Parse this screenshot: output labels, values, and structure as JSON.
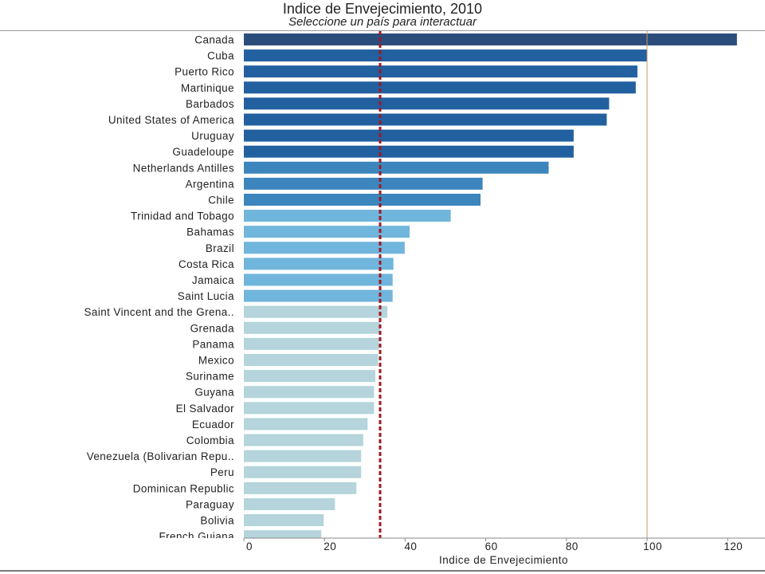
{
  "chart_data": {
    "type": "bar",
    "orientation": "horizontal",
    "title": "Indice de Envejecimiento, 2010",
    "subtitle": "Seleccione un país para interactuar",
    "xlabel": "Indice de Envejecimiento",
    "ylabel": "",
    "xlim": [
      0,
      125
    ],
    "xticks": [
      0,
      20,
      40,
      60,
      80,
      100,
      120
    ],
    "categories": [
      "Canada",
      "Cuba",
      "Puerto Rico",
      "Martinique",
      "Barbados",
      "United States of America",
      "Uruguay",
      "Guadeloupe",
      "Netherlands Antilles",
      "Argentina",
      "Chile",
      "Trinidad and Tobago",
      "Bahamas",
      "Brazil",
      "Costa Rica",
      "Jamaica",
      "Saint Lucia",
      "Saint Vincent and the Grena..",
      "Grenada",
      "Panama",
      "Mexico",
      "Suriname",
      "Guyana",
      "El Salvador",
      "Ecuador",
      "Colombia",
      "Venezuela (Bolivarian Repu..",
      "Peru",
      "Dominican Republic",
      "Paraguay",
      "Bolivia",
      "French Guiana"
    ],
    "values": [
      122.3,
      100.0,
      97.6,
      97.2,
      90.6,
      90.0,
      81.8,
      81.8,
      75.6,
      59.2,
      58.7,
      51.3,
      41.1,
      39.9,
      37.1,
      36.9,
      36.9,
      35.6,
      33.8,
      33.5,
      33.3,
      32.6,
      32.3,
      32.3,
      30.7,
      29.6,
      29.1,
      29.1,
      27.9,
      22.6,
      19.8,
      19.2
    ],
    "reference_lines": [
      {
        "value": 33.8,
        "style": "dashed",
        "color": "#a01822"
      },
      {
        "value": 100,
        "style": "solid",
        "color": "#c89a6a"
      }
    ],
    "palette": [
      "#2b4d7c",
      "#2260a0",
      "#3d86bd",
      "#70b5dc",
      "#b5d4dc"
    ],
    "grid": false,
    "legend": "none"
  }
}
